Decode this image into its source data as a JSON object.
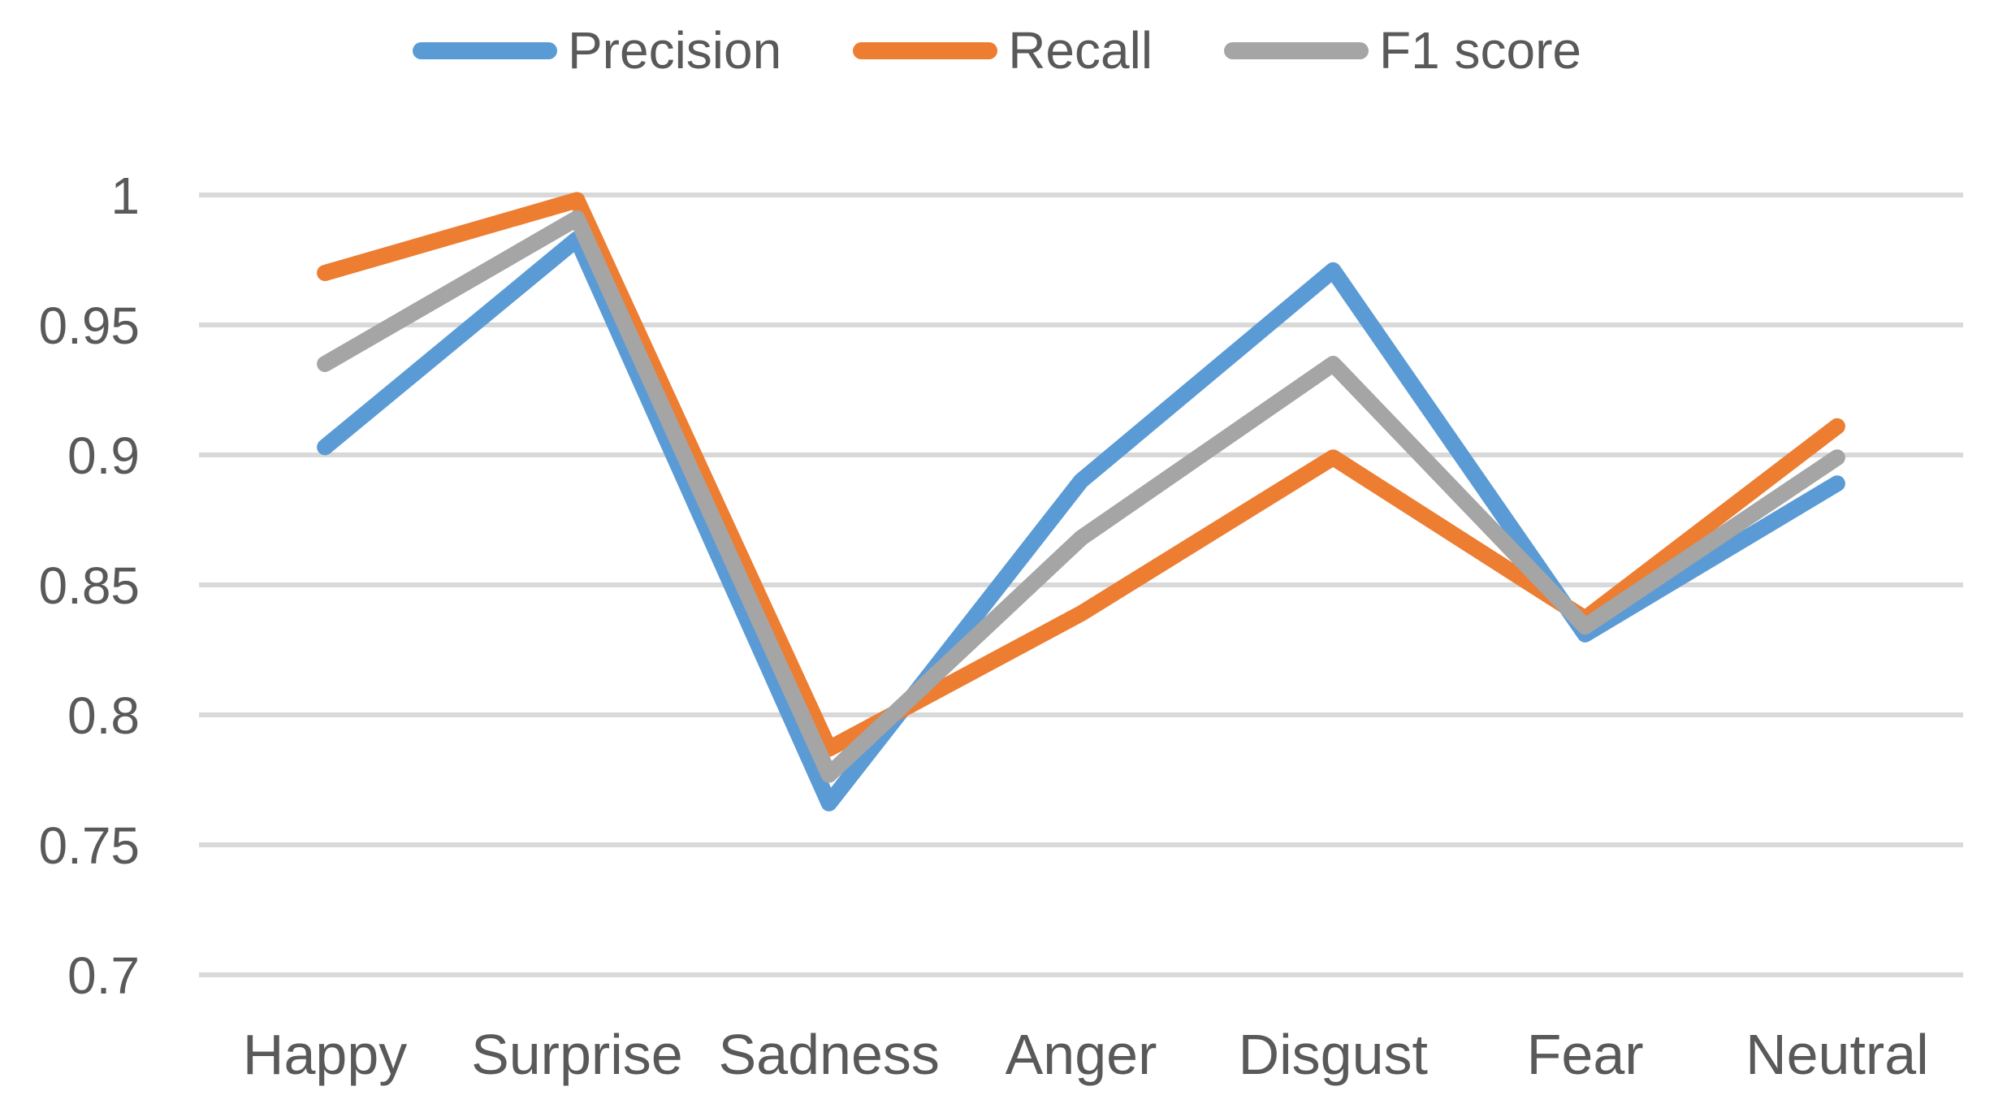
{
  "colors": {
    "precision": "#5B9BD5",
    "recall": "#ED7D31",
    "f1": "#A5A5A5",
    "gridline": "#D9D9D9",
    "text": "#595959",
    "background": "#FFFFFF"
  },
  "legend": {
    "items": [
      {
        "label": "Precision",
        "color": "#5B9BD5"
      },
      {
        "label": "Recall",
        "color": "#ED7D31"
      },
      {
        "label": "F1 score",
        "color": "#A5A5A5"
      }
    ]
  },
  "chart_data": {
    "type": "line",
    "title": "",
    "xlabel": "",
    "ylabel": "",
    "categories": [
      "Happy",
      "Surprise",
      "Sadness",
      "Anger",
      "Disgust",
      "Fear",
      "Neutral"
    ],
    "series": [
      {
        "name": "Precision",
        "color": "#5B9BD5",
        "values": [
          0.903,
          0.983,
          0.766,
          0.89,
          0.971,
          0.831,
          0.889
        ]
      },
      {
        "name": "Recall",
        "color": "#ED7D31",
        "values": [
          0.97,
          0.998,
          0.787,
          0.839,
          0.899,
          0.837,
          0.911
        ]
      },
      {
        "name": "F1 score",
        "color": "#A5A5A5",
        "values": [
          0.935,
          0.991,
          0.777,
          0.868,
          0.935,
          0.834,
          0.899
        ]
      }
    ],
    "ylim": [
      0.7,
      1.0
    ],
    "yticks": [
      1,
      0.95,
      0.9,
      0.85,
      0.8,
      0.75,
      0.7
    ],
    "ytick_labels": [
      "1",
      "0.95",
      "0.9",
      "0.85",
      "0.8",
      "0.75",
      "0.7"
    ],
    "grid": true,
    "legend_position": "top",
    "line_width": 20
  }
}
